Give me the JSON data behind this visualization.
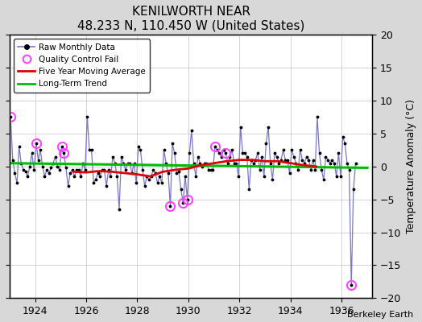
{
  "title": "KENILWORTH NEAR",
  "subtitle": "48.233 N, 110.450 W (United States)",
  "credit": "Berkeley Earth",
  "ylabel": "Temperature Anomaly (°C)",
  "xlim": [
    1923.0,
    1937.2
  ],
  "ylim": [
    -20,
    20
  ],
  "yticks": [
    -20,
    -15,
    -10,
    -5,
    0,
    5,
    10,
    15,
    20
  ],
  "xticks": [
    1924,
    1926,
    1928,
    1930,
    1932,
    1934,
    1936
  ],
  "fig_bg_color": "#d8d8d8",
  "plot_bg_color": "#ffffff",
  "raw_color": "#7777cc",
  "ma_color": "#dd0000",
  "trend_color": "#00bb00",
  "qc_color": "#ff44ff",
  "raw_data": [
    [
      1923.042,
      7.5
    ],
    [
      1923.125,
      1.0
    ],
    [
      1923.208,
      -1.0
    ],
    [
      1923.292,
      -2.5
    ],
    [
      1923.375,
      3.0
    ],
    [
      1923.458,
      0.5
    ],
    [
      1923.542,
      -0.5
    ],
    [
      1923.625,
      -0.8
    ],
    [
      1923.708,
      -1.5
    ],
    [
      1923.792,
      0.0
    ],
    [
      1923.875,
      2.0
    ],
    [
      1923.958,
      -0.5
    ],
    [
      1924.042,
      3.5
    ],
    [
      1924.125,
      1.0
    ],
    [
      1924.208,
      2.5
    ],
    [
      1924.292,
      0.0
    ],
    [
      1924.375,
      -1.5
    ],
    [
      1924.458,
      -0.5
    ],
    [
      1924.542,
      -1.0
    ],
    [
      1924.625,
      -0.2
    ],
    [
      1924.708,
      0.5
    ],
    [
      1924.792,
      1.5
    ],
    [
      1924.875,
      0.0
    ],
    [
      1924.958,
      -0.5
    ],
    [
      1925.042,
      3.0
    ],
    [
      1925.125,
      2.0
    ],
    [
      1925.208,
      -0.2
    ],
    [
      1925.292,
      -3.0
    ],
    [
      1925.375,
      -1.0
    ],
    [
      1925.458,
      -0.5
    ],
    [
      1925.542,
      -1.5
    ],
    [
      1925.625,
      -0.5
    ],
    [
      1925.708,
      -0.5
    ],
    [
      1925.792,
      -1.5
    ],
    [
      1925.875,
      0.5
    ],
    [
      1925.958,
      -0.5
    ],
    [
      1926.042,
      7.5
    ],
    [
      1926.125,
      2.5
    ],
    [
      1926.208,
      2.5
    ],
    [
      1926.292,
      -2.5
    ],
    [
      1926.375,
      -2.0
    ],
    [
      1926.458,
      -1.0
    ],
    [
      1926.542,
      -1.5
    ],
    [
      1926.625,
      -0.5
    ],
    [
      1926.708,
      -0.5
    ],
    [
      1926.792,
      -3.0
    ],
    [
      1926.875,
      -0.5
    ],
    [
      1926.958,
      -1.5
    ],
    [
      1927.042,
      1.5
    ],
    [
      1927.125,
      0.5
    ],
    [
      1927.208,
      -1.5
    ],
    [
      1927.292,
      -6.5
    ],
    [
      1927.375,
      1.5
    ],
    [
      1927.458,
      0.5
    ],
    [
      1927.542,
      -0.5
    ],
    [
      1927.625,
      0.5
    ],
    [
      1927.708,
      0.5
    ],
    [
      1927.792,
      -1.0
    ],
    [
      1927.875,
      0.5
    ],
    [
      1927.958,
      -2.5
    ],
    [
      1928.042,
      3.0
    ],
    [
      1928.125,
      2.5
    ],
    [
      1928.208,
      -0.5
    ],
    [
      1928.292,
      -3.0
    ],
    [
      1928.375,
      -1.5
    ],
    [
      1928.458,
      -2.0
    ],
    [
      1928.542,
      -1.5
    ],
    [
      1928.625,
      -0.5
    ],
    [
      1928.708,
      -1.0
    ],
    [
      1928.792,
      -2.5
    ],
    [
      1928.875,
      -1.5
    ],
    [
      1928.958,
      -2.5
    ],
    [
      1929.042,
      2.5
    ],
    [
      1929.125,
      0.5
    ],
    [
      1929.208,
      -1.0
    ],
    [
      1929.292,
      -6.0
    ],
    [
      1929.375,
      3.5
    ],
    [
      1929.458,
      2.0
    ],
    [
      1929.542,
      -1.0
    ],
    [
      1929.625,
      -0.8
    ],
    [
      1929.708,
      -3.5
    ],
    [
      1929.792,
      -5.5
    ],
    [
      1929.875,
      -1.5
    ],
    [
      1929.958,
      -5.0
    ],
    [
      1930.042,
      2.0
    ],
    [
      1930.125,
      5.5
    ],
    [
      1930.208,
      0.5
    ],
    [
      1930.292,
      -1.5
    ],
    [
      1930.375,
      1.5
    ],
    [
      1930.458,
      0.5
    ],
    [
      1930.542,
      0.0
    ],
    [
      1930.625,
      0.5
    ],
    [
      1930.708,
      0.5
    ],
    [
      1930.792,
      -0.5
    ],
    [
      1930.875,
      -0.5
    ],
    [
      1930.958,
      -0.5
    ],
    [
      1931.042,
      3.0
    ],
    [
      1931.125,
      2.5
    ],
    [
      1931.208,
      2.0
    ],
    [
      1931.292,
      1.5
    ],
    [
      1931.375,
      2.5
    ],
    [
      1931.458,
      2.0
    ],
    [
      1931.542,
      0.5
    ],
    [
      1931.625,
      1.5
    ],
    [
      1931.708,
      2.5
    ],
    [
      1931.792,
      0.5
    ],
    [
      1931.875,
      0.5
    ],
    [
      1931.958,
      -1.5
    ],
    [
      1932.042,
      6.0
    ],
    [
      1932.125,
      2.0
    ],
    [
      1932.208,
      2.0
    ],
    [
      1932.292,
      1.5
    ],
    [
      1932.375,
      -3.5
    ],
    [
      1932.458,
      1.0
    ],
    [
      1932.542,
      0.5
    ],
    [
      1932.625,
      1.0
    ],
    [
      1932.708,
      2.0
    ],
    [
      1932.792,
      -0.5
    ],
    [
      1932.875,
      1.5
    ],
    [
      1932.958,
      -1.5
    ],
    [
      1933.042,
      3.5
    ],
    [
      1933.125,
      6.0
    ],
    [
      1933.208,
      0.5
    ],
    [
      1933.292,
      -2.0
    ],
    [
      1933.375,
      2.0
    ],
    [
      1933.458,
      1.5
    ],
    [
      1933.542,
      0.5
    ],
    [
      1933.625,
      1.0
    ],
    [
      1933.708,
      2.5
    ],
    [
      1933.792,
      1.0
    ],
    [
      1933.875,
      1.0
    ],
    [
      1933.958,
      -1.0
    ],
    [
      1934.042,
      2.5
    ],
    [
      1934.125,
      1.5
    ],
    [
      1934.208,
      0.5
    ],
    [
      1934.292,
      -0.5
    ],
    [
      1934.375,
      2.5
    ],
    [
      1934.458,
      1.0
    ],
    [
      1934.542,
      0.5
    ],
    [
      1934.625,
      1.5
    ],
    [
      1934.708,
      1.0
    ],
    [
      1934.792,
      -0.5
    ],
    [
      1934.875,
      1.0
    ],
    [
      1934.958,
      -0.5
    ],
    [
      1935.042,
      7.5
    ],
    [
      1935.125,
      2.0
    ],
    [
      1935.208,
      -0.5
    ],
    [
      1935.292,
      -2.0
    ],
    [
      1935.375,
      1.5
    ],
    [
      1935.458,
      1.0
    ],
    [
      1935.542,
      0.5
    ],
    [
      1935.625,
      1.0
    ],
    [
      1935.708,
      0.5
    ],
    [
      1935.792,
      -1.5
    ],
    [
      1935.875,
      2.0
    ],
    [
      1935.958,
      -1.5
    ],
    [
      1936.042,
      4.5
    ],
    [
      1936.125,
      3.5
    ],
    [
      1936.208,
      0.5
    ],
    [
      1936.292,
      -0.5
    ],
    [
      1936.375,
      -18.0
    ],
    [
      1936.458,
      -3.5
    ],
    [
      1936.542,
      0.5
    ]
  ],
  "qc_fail_points": [
    [
      1923.042,
      7.5
    ],
    [
      1924.042,
      3.5
    ],
    [
      1925.042,
      3.0
    ],
    [
      1925.125,
      2.0
    ],
    [
      1929.292,
      -6.0
    ],
    [
      1929.792,
      -5.5
    ],
    [
      1929.958,
      -5.0
    ],
    [
      1931.042,
      3.0
    ],
    [
      1931.458,
      2.0
    ],
    [
      1936.375,
      -18.0
    ]
  ],
  "ma_data": [
    [
      1925.5,
      -0.8
    ],
    [
      1926.0,
      -0.9
    ],
    [
      1926.5,
      -0.7
    ],
    [
      1927.0,
      -0.8
    ],
    [
      1927.5,
      -1.0
    ],
    [
      1928.0,
      -1.2
    ],
    [
      1928.5,
      -1.5
    ],
    [
      1929.0,
      -0.8
    ],
    [
      1929.5,
      -0.5
    ],
    [
      1930.0,
      -0.3
    ],
    [
      1930.5,
      0.2
    ],
    [
      1931.0,
      0.5
    ],
    [
      1931.5,
      0.8
    ],
    [
      1932.0,
      1.0
    ],
    [
      1932.5,
      1.0
    ],
    [
      1933.0,
      0.8
    ],
    [
      1933.5,
      0.8
    ],
    [
      1934.0,
      0.5
    ],
    [
      1934.5,
      0.2
    ],
    [
      1935.0,
      0.0
    ]
  ],
  "trend_x": [
    1923.0,
    1937.0
  ],
  "trend_y": [
    0.5,
    -0.2
  ]
}
